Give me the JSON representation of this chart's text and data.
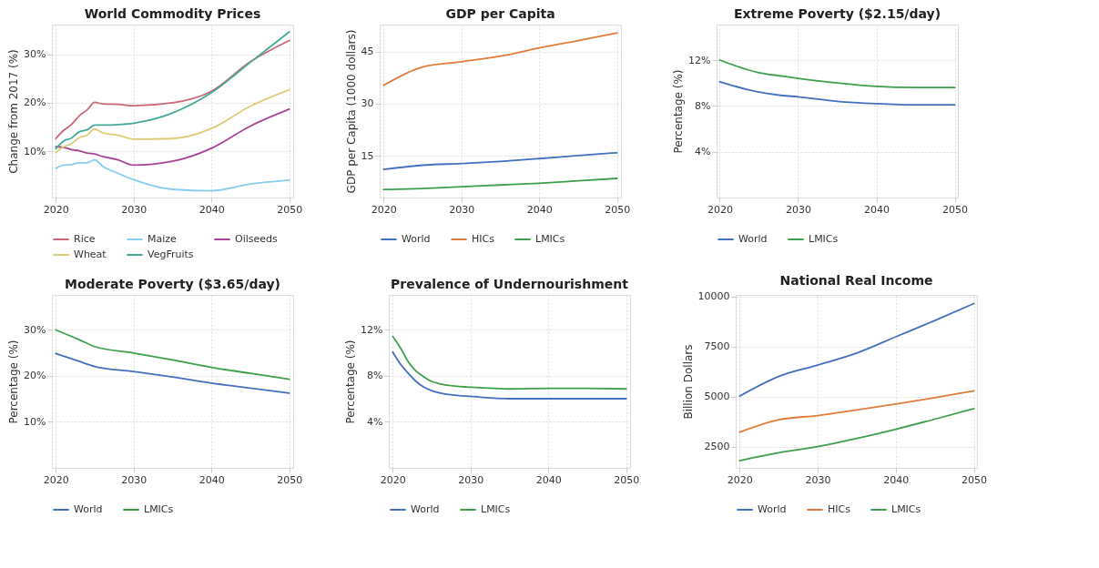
{
  "chart_data": [
    {
      "type": "line",
      "title": "World Commodity Prices",
      "ylabel": "Change from 2017 (%)",
      "xlim": [
        2019.5,
        2050.5
      ],
      "xticks": [
        2020,
        2030,
        2040,
        2050
      ],
      "ylim": [
        0.4,
        36.2
      ],
      "yticks": [
        {
          "value": 10,
          "label": "10%"
        },
        {
          "value": 20,
          "label": "20%"
        },
        {
          "value": 30,
          "label": "30%"
        }
      ],
      "grid": true,
      "legend": "bottom",
      "x": [
        2020,
        2021,
        2022,
        2023,
        2024,
        2025,
        2026,
        2028,
        2030,
        2035,
        2040,
        2045,
        2050
      ],
      "series": [
        {
          "name": "Rice",
          "color": "#cc6677",
          "values": [
            12.6,
            14.3,
            15.5,
            17.3,
            18.5,
            20.1,
            19.8,
            19.7,
            19.4,
            20.0,
            22.4,
            28.5,
            32.9
          ]
        },
        {
          "name": "Maize",
          "color": "#88ccee",
          "values": [
            6.4,
            7.1,
            7.2,
            7.6,
            7.6,
            8.2,
            6.9,
            5.4,
            4.1,
            2.1,
            1.8,
            3.2,
            4.0
          ]
        },
        {
          "name": "Oilseeds",
          "color": "#aa4499",
          "values": [
            10.9,
            10.8,
            10.3,
            10.1,
            9.6,
            9.4,
            8.9,
            8.2,
            7.1,
            7.9,
            10.6,
            15.2,
            18.7
          ]
        },
        {
          "name": "Wheat",
          "color": "#ddcc77",
          "values": [
            9.7,
            10.9,
            11.5,
            12.8,
            13.3,
            14.6,
            13.8,
            13.3,
            12.5,
            12.6,
            14.7,
            19.3,
            22.7
          ]
        },
        {
          "name": "VegFruits",
          "color": "#44aa99",
          "values": [
            10.5,
            12.1,
            12.7,
            14.0,
            14.4,
            15.4,
            15.4,
            15.5,
            15.8,
            17.9,
            22.1,
            28.4,
            34.7
          ]
        }
      ]
    },
    {
      "type": "line",
      "title": "GDP per Capita",
      "ylabel": "GDP per Capita (1000 dollars)",
      "xlim": [
        2019.5,
        2050.5
      ],
      "xticks": [
        2020,
        2030,
        2040,
        2050
      ],
      "ylim": [
        3,
        52.8
      ],
      "yticks": [
        15,
        30,
        45
      ],
      "grid": true,
      "legend": "bottom",
      "x": [
        2020,
        2025,
        2030,
        2035,
        2040,
        2045,
        2050
      ],
      "series": [
        {
          "name": "World",
          "color": "#4470bf",
          "values": [
            11.1,
            12.3,
            12.8,
            13.4,
            14.2,
            15.1,
            15.9
          ]
        },
        {
          "name": "HICs",
          "color": "#e07b39",
          "values": [
            35.3,
            40.6,
            42.1,
            43.7,
            46.1,
            48.2,
            50.4
          ]
        },
        {
          "name": "LMICs",
          "color": "#3f9e4d",
          "values": [
            5.3,
            5.6,
            6.1,
            6.6,
            7.1,
            7.8,
            8.5
          ]
        }
      ]
    },
    {
      "type": "line",
      "title": "Extreme Poverty ($2.15/day)",
      "ylabel": "Percentage (%)",
      "xlim": [
        2019.6,
        2050.4
      ],
      "xticks": [
        2020,
        2030,
        2040,
        2050
      ],
      "ylim": [
        0,
        15.1
      ],
      "yticks": [
        {
          "value": 4,
          "label": "4%"
        },
        {
          "value": 8,
          "label": "8%"
        },
        {
          "value": 12,
          "label": "12%"
        }
      ],
      "grid": true,
      "legend": "bottom",
      "x": [
        2020,
        2025,
        2028,
        2030,
        2035,
        2040,
        2045,
        2050
      ],
      "series": [
        {
          "name": "World",
          "color": "#4470bf",
          "values": [
            10.1,
            9.2,
            8.9,
            8.8,
            8.4,
            8.2,
            8.1,
            8.1
          ]
        },
        {
          "name": "LMICs",
          "color": "#3f9e4d",
          "values": [
            12.0,
            10.9,
            10.6,
            10.4,
            10.0,
            9.7,
            9.6,
            9.6
          ]
        }
      ]
    },
    {
      "type": "line",
      "title": "Moderate Poverty ($3.65/day)",
      "ylabel": "Percentage (%)",
      "xlim": [
        2019.5,
        2050.5
      ],
      "xticks": [
        2020,
        2030,
        2040,
        2050
      ],
      "ylim": [
        0,
        37.5
      ],
      "yticks": [
        {
          "value": 10,
          "label": "10%"
        },
        {
          "value": 20,
          "label": "20%"
        },
        {
          "value": 30,
          "label": "30%"
        }
      ],
      "grid": true,
      "legend": "bottom",
      "x": [
        2020,
        2023,
        2025,
        2030,
        2035,
        2040,
        2045,
        2050
      ],
      "series": [
        {
          "name": "World",
          "color": "#4470bf",
          "values": [
            24.8,
            23.1,
            22.0,
            20.9,
            19.7,
            18.4,
            17.3,
            16.2
          ]
        },
        {
          "name": "LMICs",
          "color": "#3f9e4d",
          "values": [
            29.9,
            27.8,
            26.3,
            24.9,
            23.4,
            21.8,
            20.5,
            19.2
          ]
        }
      ]
    },
    {
      "type": "line",
      "title": "Prevalence of Undernourishment",
      "ylabel": "Percentage (%)",
      "xlim": [
        2019.5,
        2050.5
      ],
      "xticks": [
        2020,
        2030,
        2040,
        2050
      ],
      "ylim": [
        0,
        15
      ],
      "yticks": [
        {
          "value": 4,
          "label": "4%"
        },
        {
          "value": 8,
          "label": "8%"
        },
        {
          "value": 12,
          "label": "12%"
        }
      ],
      "grid": true,
      "legend": "bottom",
      "x": [
        2020,
        2021,
        2022,
        2023,
        2024,
        2025,
        2026,
        2028,
        2030,
        2035,
        2040,
        2045,
        2050
      ],
      "series": [
        {
          "name": "World",
          "color": "#4470bf",
          "values": [
            10.05,
            9.0,
            8.2,
            7.5,
            7.0,
            6.7,
            6.5,
            6.3,
            6.2,
            6.0,
            6.0,
            6.0,
            6.0
          ]
        },
        {
          "name": "LMICs",
          "color": "#3f9e4d",
          "values": [
            11.4,
            10.4,
            9.2,
            8.4,
            7.9,
            7.5,
            7.3,
            7.1,
            7.0,
            6.85,
            6.9,
            6.9,
            6.85
          ]
        }
      ]
    },
    {
      "type": "line",
      "title": "National Real Income",
      "ylabel": "Billion Dollars",
      "xlim": [
        2019.5,
        2050.4
      ],
      "xticks": [
        2020,
        2030,
        2040,
        2050
      ],
      "ylim": [
        1440,
        10070
      ],
      "yticks": [
        2500,
        5000,
        7500,
        10000
      ],
      "grid": true,
      "legend": "bottom",
      "x": [
        2020,
        2025,
        2030,
        2035,
        2040,
        2045,
        2050
      ],
      "series": [
        {
          "name": "World",
          "color": "#4470bf",
          "values": [
            5020,
            6000,
            6570,
            7170,
            7980,
            8790,
            9640
          ]
        },
        {
          "name": "HICs",
          "color": "#e07b39",
          "values": [
            3220,
            3840,
            4050,
            4330,
            4630,
            4940,
            5280
          ]
        },
        {
          "name": "LMICs",
          "color": "#3f9e4d",
          "values": [
            1800,
            2190,
            2500,
            2910,
            3370,
            3870,
            4400
          ]
        }
      ]
    }
  ]
}
